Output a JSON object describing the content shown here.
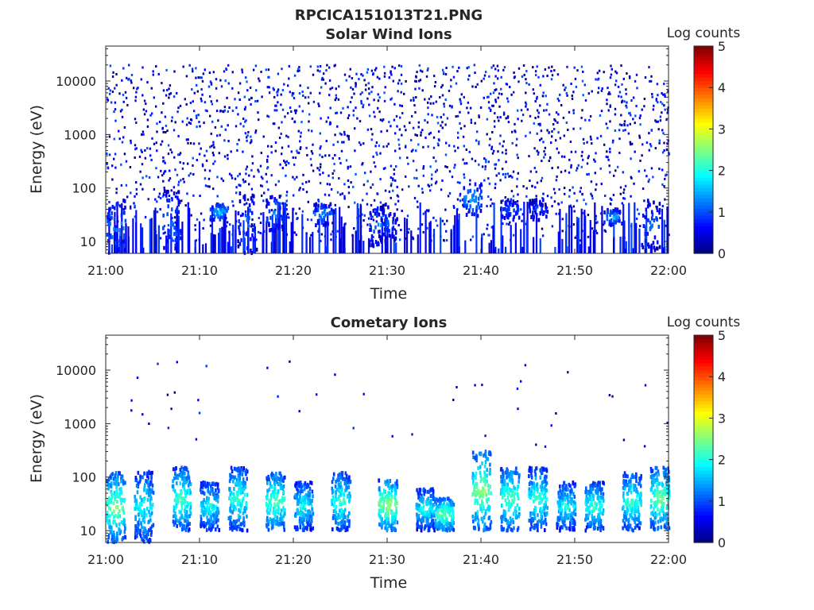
{
  "figure": {
    "title": "RPCICA151013T21.PNG"
  },
  "chart_data": [
    {
      "type": "heatmap",
      "title": "Solar Wind Ions",
      "xlabel": "Time",
      "ylabel": "Energy (eV)",
      "x_range": [
        "21:00",
        "22:00"
      ],
      "y_range_ev": [
        6,
        45000
      ],
      "y_scale": "log",
      "colorbar": {
        "label": "Log counts",
        "range": [
          0,
          5
        ],
        "ticks": [
          "0",
          "1",
          "2",
          "3",
          "4",
          "5"
        ],
        "colormap": "jet"
      },
      "xticks": [
        "21:00",
        "21:10",
        "21:20",
        "21:30",
        "21:40",
        "21:50",
        "22:00"
      ],
      "yticks": [
        {
          "value": 10,
          "label": "10"
        },
        {
          "value": 100,
          "label": "100"
        },
        {
          "value": 1000,
          "label": "1000"
        },
        {
          "value": 10000,
          "label": "10000"
        }
      ],
      "features": {
        "background_scatter": "sparse low counts (log 0-1) across 10-20000 eV",
        "bursts": [
          {
            "time": "21:01",
            "e_low": 6,
            "e_high": 60,
            "level": 1.4
          },
          {
            "time": "21:07",
            "e_low": 6,
            "e_high": 90,
            "level": 1.3
          },
          {
            "time": "21:12",
            "e_low": 25,
            "e_high": 50,
            "level": 1.6
          },
          {
            "time": "21:15",
            "e_low": 6,
            "e_high": 80,
            "level": 1.2
          },
          {
            "time": "21:18",
            "e_low": 15,
            "e_high": 70,
            "level": 1.3
          },
          {
            "time": "21:23",
            "e_low": 20,
            "e_high": 50,
            "level": 1.4
          },
          {
            "time": "21:29",
            "e_low": 8,
            "e_high": 50,
            "level": 1.3
          },
          {
            "time": "21:30",
            "e_low": 10,
            "e_high": 45,
            "level": 1.0
          },
          {
            "time": "21:39",
            "e_low": 30,
            "e_high": 130,
            "level": 1.5
          },
          {
            "time": "21:43",
            "e_low": 25,
            "e_high": 60,
            "level": 1.2
          },
          {
            "time": "21:46",
            "e_low": 25,
            "e_high": 60,
            "level": 1.0
          },
          {
            "time": "21:54",
            "e_low": 20,
            "e_high": 40,
            "level": 1.5
          },
          {
            "time": "21:58",
            "e_low": 6,
            "e_high": 60,
            "level": 1.1
          }
        ]
      }
    },
    {
      "type": "heatmap",
      "title": "Cometary Ions",
      "xlabel": "Time",
      "ylabel": "Energy (eV)",
      "x_range": [
        "21:00",
        "22:00"
      ],
      "y_range_ev": [
        6,
        45000
      ],
      "y_scale": "log",
      "colorbar": {
        "label": "Log counts",
        "range": [
          0,
          5
        ],
        "ticks": [
          "0",
          "1",
          "2",
          "3",
          "4",
          "5"
        ],
        "colormap": "jet"
      },
      "xticks": [
        "21:00",
        "21:10",
        "21:20",
        "21:30",
        "21:40",
        "21:50",
        "22:00"
      ],
      "yticks": [
        {
          "value": 10,
          "label": "10"
        },
        {
          "value": 100,
          "label": "100"
        },
        {
          "value": 1000,
          "label": "1000"
        },
        {
          "value": 10000,
          "label": "10000"
        }
      ],
      "features": {
        "background_scatter": "very sparse low counts (log 0-1) above 300 eV",
        "bursts": [
          {
            "time": "21:01",
            "e_low": 6,
            "e_high": 120,
            "level": 2.5
          },
          {
            "time": "21:04",
            "e_low": 6,
            "e_high": 130,
            "level": 2.0
          },
          {
            "time": "21:08",
            "e_low": 10,
            "e_high": 150,
            "level": 2.3
          },
          {
            "time": "21:11",
            "e_low": 10,
            "e_high": 80,
            "level": 2.0
          },
          {
            "time": "21:14",
            "e_low": 10,
            "e_high": 150,
            "level": 2.2
          },
          {
            "time": "21:18",
            "e_low": 10,
            "e_high": 120,
            "level": 2.4
          },
          {
            "time": "21:21",
            "e_low": 10,
            "e_high": 80,
            "level": 2.0
          },
          {
            "time": "21:25",
            "e_low": 10,
            "e_high": 120,
            "level": 2.2
          },
          {
            "time": "21:30",
            "e_low": 10,
            "e_high": 90,
            "level": 2.7
          },
          {
            "time": "21:34",
            "e_low": 10,
            "e_high": 60,
            "level": 2.0
          },
          {
            "time": "21:36",
            "e_low": 10,
            "e_high": 40,
            "level": 2.5
          },
          {
            "time": "21:40",
            "e_low": 10,
            "e_high": 300,
            "level": 2.6
          },
          {
            "time": "21:43",
            "e_low": 10,
            "e_high": 150,
            "level": 2.4
          },
          {
            "time": "21:46",
            "e_low": 10,
            "e_high": 150,
            "level": 2.2
          },
          {
            "time": "21:49",
            "e_low": 10,
            "e_high": 80,
            "level": 2.0
          },
          {
            "time": "21:52",
            "e_low": 10,
            "e_high": 80,
            "level": 2.2
          },
          {
            "time": "21:56",
            "e_low": 10,
            "e_high": 120,
            "level": 2.2
          },
          {
            "time": "21:59",
            "e_low": 10,
            "e_high": 150,
            "level": 2.5
          }
        ]
      }
    }
  ]
}
